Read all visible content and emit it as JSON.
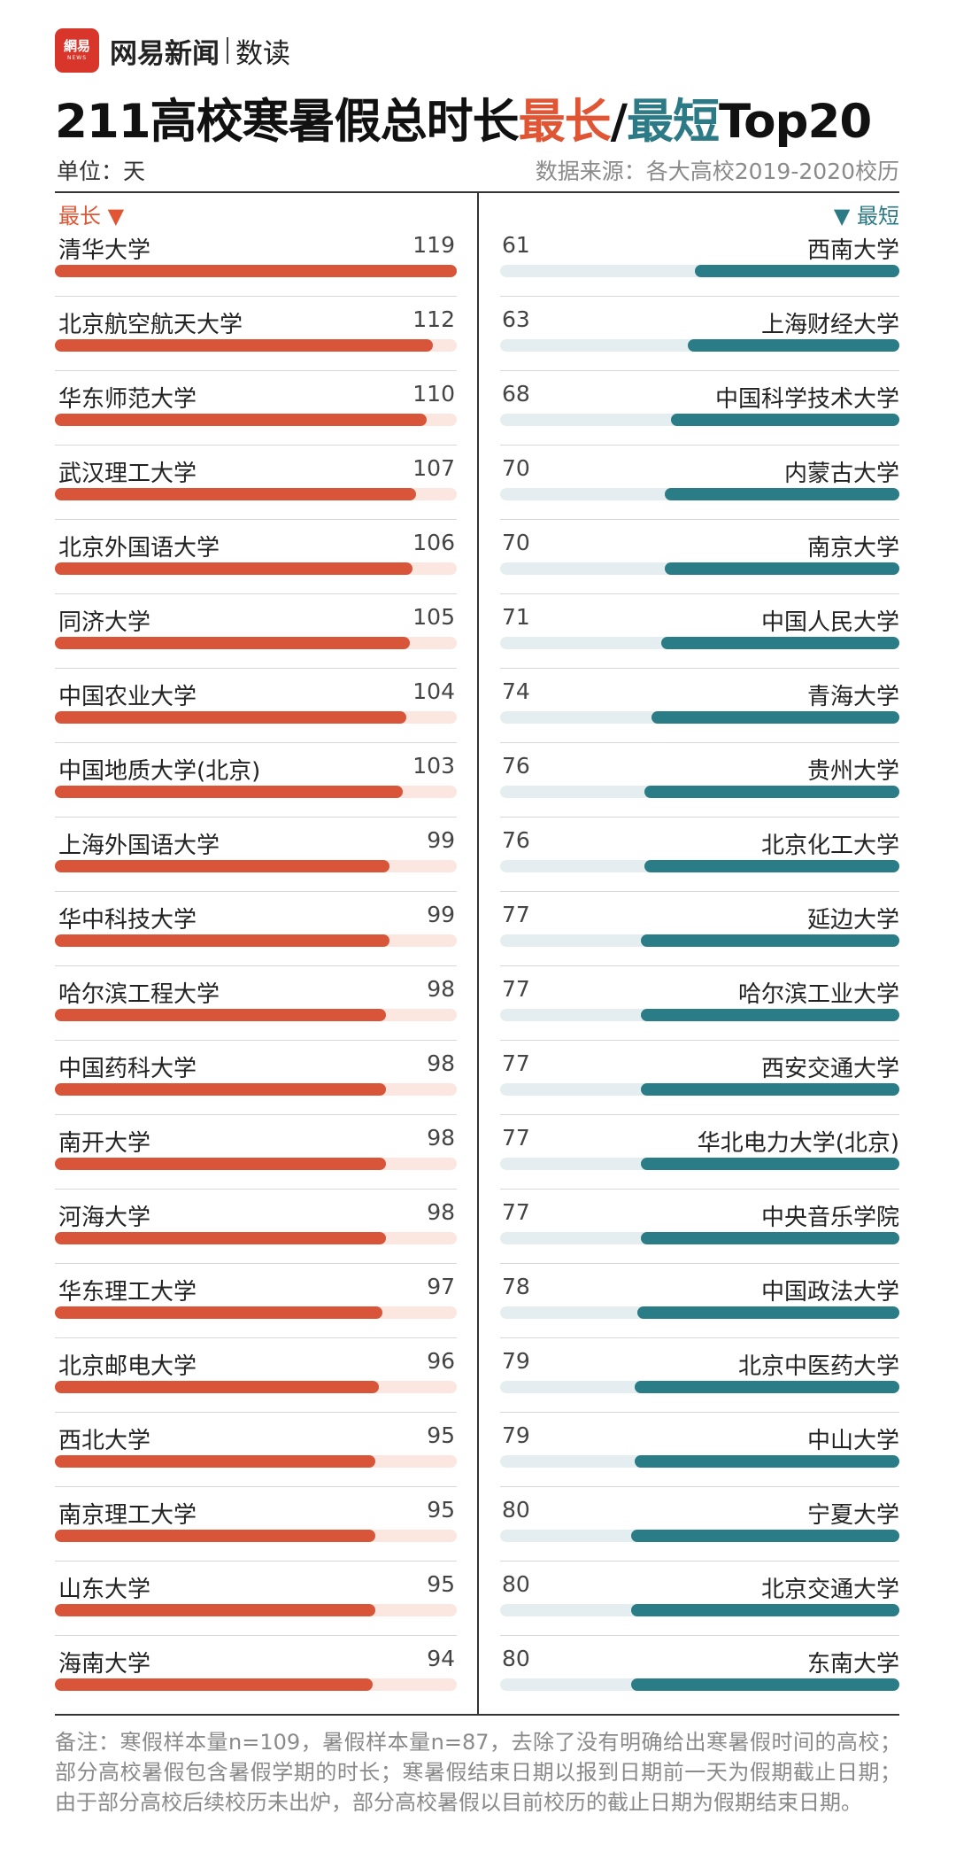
{
  "brand": {
    "logo_text": "網易",
    "logo_subtext": "NEWS",
    "name": "网易新闻",
    "sub": "数读"
  },
  "title": {
    "prefix": "211高校寒暑假总时长",
    "long": "最长",
    "slash": "/",
    "short": "最短",
    "suffix": "Top20"
  },
  "unit": "单位：天",
  "source": "数据来源：各大高校2019-2020校历",
  "colors": {
    "long": "#d9553a",
    "long_track": "#fbe6e0",
    "short": "#2a7c86",
    "short_track": "#e4eef0"
  },
  "chart_data": [
    {
      "type": "bar",
      "title": "最长 ▼",
      "orientation": "horizontal",
      "xlim": [
        0,
        119
      ],
      "categories": [
        "清华大学",
        "北京航空航天大学",
        "华东师范大学",
        "武汉理工大学",
        "北京外国语大学",
        "同济大学",
        "中国农业大学",
        "中国地质大学(北京)",
        "上海外国语大学",
        "华中科技大学",
        "哈尔滨工程大学",
        "中国药科大学",
        "南开大学",
        "河海大学",
        "华东理工大学",
        "北京邮电大学",
        "西北大学",
        "南京理工大学",
        "山东大学",
        "海南大学"
      ],
      "values": [
        119,
        112,
        110,
        107,
        106,
        105,
        104,
        103,
        99,
        99,
        98,
        98,
        98,
        98,
        97,
        96,
        95,
        95,
        95,
        94
      ]
    },
    {
      "type": "bar",
      "title": "▼ 最短",
      "orientation": "horizontal",
      "xlim": [
        0,
        119
      ],
      "categories": [
        "西南大学",
        "上海财经大学",
        "中国科学技术大学",
        "内蒙古大学",
        "南京大学",
        "中国人民大学",
        "青海大学",
        "贵州大学",
        "北京化工大学",
        "延边大学",
        "哈尔滨工业大学",
        "西安交通大学",
        "华北电力大学(北京)",
        "中央音乐学院",
        "中国政法大学",
        "北京中医药大学",
        "中山大学",
        "宁夏大学",
        "北京交通大学",
        "东南大学"
      ],
      "values": [
        61,
        63,
        68,
        70,
        70,
        71,
        74,
        76,
        76,
        77,
        77,
        77,
        77,
        77,
        78,
        79,
        79,
        80,
        80,
        80
      ]
    }
  ],
  "footnote": "备注：寒假样本量n=109，暑假样本量n=87，去除了没有明确给出寒暑假时间的高校；部分高校暑假包含暑假学期的时长；寒暑假结束日期以报到日期前一天为假期截止日期；由于部分高校后续校历未出炉，部分高校暑假以目前校历的截止日期为假期结束日期。"
}
